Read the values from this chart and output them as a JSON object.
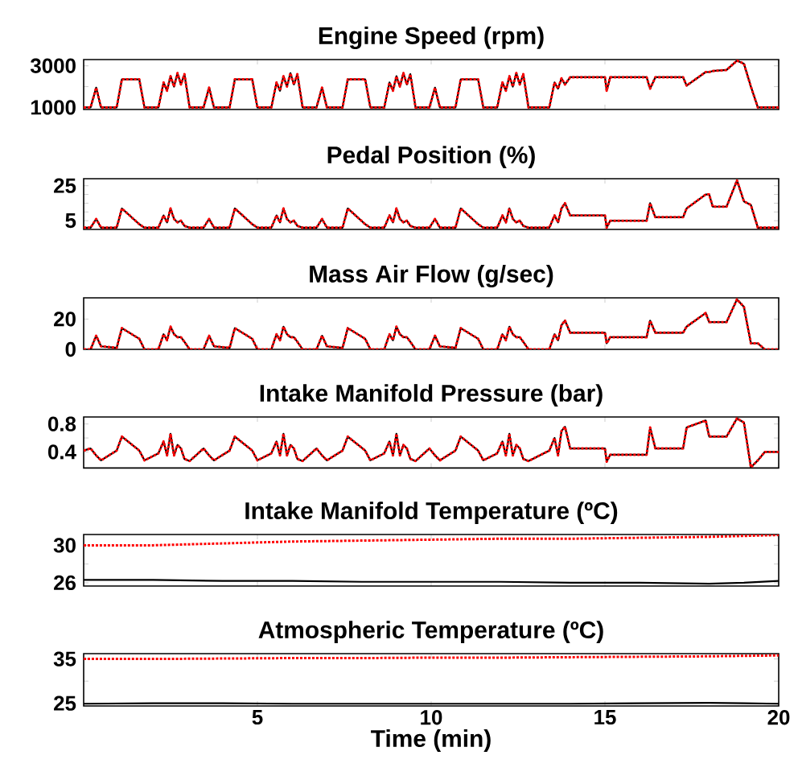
{
  "chart_data": [
    {
      "type": "line",
      "title": "Engine Speed (rpm)",
      "xlim": [
        0,
        20
      ],
      "xticks": [
        5,
        10,
        15,
        20
      ],
      "ylim": [
        900,
        3300
      ],
      "yticks": [
        1000,
        {
          "value": 2000,
          "label": null
        },
        3000
      ],
      "tick_labels": "y",
      "x": [
        0,
        0.2,
        0.36,
        0.5,
        0.95,
        1.1,
        1.6,
        1.75,
        2.15,
        2.3,
        2.4,
        2.5,
        2.6,
        2.7,
        2.8,
        2.9,
        3.05,
        3.45,
        3.61,
        3.75,
        4.2,
        4.35,
        4.85,
        5.0,
        5.4,
        5.55,
        5.65,
        5.75,
        5.85,
        5.95,
        6.05,
        6.15,
        6.3,
        6.7,
        6.86,
        7.0,
        7.45,
        7.6,
        8.1,
        8.25,
        8.65,
        8.8,
        8.9,
        9.0,
        9.1,
        9.2,
        9.3,
        9.4,
        9.55,
        9.95,
        10.11,
        10.25,
        10.7,
        10.85,
        11.35,
        11.5,
        11.9,
        12.05,
        12.15,
        12.25,
        12.35,
        12.45,
        12.55,
        12.65,
        12.8,
        13.4,
        13.55,
        13.65,
        13.75,
        13.85,
        14.0,
        15.0,
        15.05,
        15.15,
        16.2,
        16.3,
        16.45,
        17.25,
        17.35,
        17.9,
        18.0,
        18.1,
        18.5,
        18.8,
        19.0,
        19.2,
        19.4,
        19.6,
        20
      ],
      "series": [
        {
          "color": "#000000",
          "line_style": "solid",
          "values": [
            1000,
            1000,
            1950,
            1000,
            1000,
            2350,
            2350,
            1000,
            1000,
            2200,
            1800,
            2500,
            2000,
            2650,
            2100,
            2600,
            1000,
            1000,
            1950,
            1000,
            1000,
            2350,
            2350,
            1000,
            1000,
            2200,
            1800,
            2500,
            2000,
            2650,
            2100,
            2600,
            1000,
            1000,
            1950,
            1000,
            1000,
            2350,
            2350,
            1000,
            1000,
            2200,
            1800,
            2500,
            2000,
            2650,
            2100,
            2600,
            1000,
            1000,
            1950,
            1000,
            1000,
            2350,
            2350,
            1000,
            1000,
            2200,
            1800,
            2500,
            2000,
            2650,
            2100,
            2600,
            1000,
            1000,
            2200,
            1900,
            2400,
            2100,
            2450,
            2450,
            1800,
            2450,
            2450,
            1900,
            2450,
            2450,
            2050,
            2700,
            2700,
            2750,
            2800,
            3250,
            3100,
            2000,
            1000,
            1000,
            1000
          ]
        },
        {
          "color": "#ff0000",
          "line_style": "dotted",
          "values": [
            1000,
            1000,
            1950,
            1000,
            1000,
            2350,
            2350,
            1000,
            1000,
            2200,
            1800,
            2500,
            2000,
            2650,
            2100,
            2600,
            1000,
            1000,
            1950,
            1000,
            1000,
            2350,
            2350,
            1000,
            1000,
            2200,
            1800,
            2500,
            2000,
            2650,
            2100,
            2600,
            1000,
            1000,
            1950,
            1000,
            1000,
            2350,
            2350,
            1000,
            1000,
            2200,
            1800,
            2500,
            2000,
            2650,
            2100,
            2600,
            1000,
            1000,
            1950,
            1000,
            1000,
            2350,
            2350,
            1000,
            1000,
            2200,
            1800,
            2500,
            2000,
            2650,
            2100,
            2600,
            1000,
            1000,
            2200,
            1900,
            2400,
            2100,
            2450,
            2450,
            1800,
            2450,
            2450,
            1900,
            2450,
            2450,
            2050,
            2700,
            2700,
            2750,
            2800,
            3250,
            3100,
            2000,
            1000,
            1000,
            1000
          ]
        }
      ]
    },
    {
      "type": "line",
      "title": "Pedal Position (%)",
      "xlim": [
        0,
        20
      ],
      "xticks": [
        5,
        10,
        15,
        20
      ],
      "ylim": [
        0,
        29
      ],
      "yticks": [
        5,
        {
          "value": 10,
          "label": null
        },
        {
          "value": 15,
          "label": null
        },
        {
          "value": 20,
          "label": null
        },
        25
      ],
      "tick_labels": "y",
      "x": [
        0,
        0.2,
        0.36,
        0.5,
        0.95,
        1.1,
        1.6,
        1.75,
        2.15,
        2.3,
        2.4,
        2.5,
        2.6,
        2.7,
        2.8,
        2.9,
        3.05,
        3.45,
        3.61,
        3.75,
        4.2,
        4.35,
        4.85,
        5.0,
        5.4,
        5.55,
        5.65,
        5.75,
        5.85,
        5.95,
        6.05,
        6.15,
        6.3,
        6.7,
        6.86,
        7.0,
        7.45,
        7.6,
        8.1,
        8.25,
        8.65,
        8.8,
        8.9,
        9.0,
        9.1,
        9.2,
        9.3,
        9.4,
        9.55,
        9.95,
        10.11,
        10.25,
        10.7,
        10.85,
        11.35,
        11.5,
        11.9,
        12.05,
        12.15,
        12.25,
        12.35,
        12.45,
        12.55,
        12.65,
        12.8,
        13.4,
        13.55,
        13.65,
        13.75,
        13.85,
        14.0,
        15.0,
        15.05,
        15.15,
        16.2,
        16.3,
        16.45,
        17.25,
        17.35,
        17.9,
        18.0,
        18.1,
        18.5,
        18.8,
        19.0,
        19.2,
        19.4,
        19.6,
        20
      ],
      "series": [
        {
          "color": "#000000",
          "line_style": "solid",
          "values": [
            1,
            1,
            6,
            1,
            1,
            12,
            3,
            1,
            1,
            8,
            4,
            12,
            6,
            4,
            5,
            2,
            1,
            1,
            6,
            1,
            1,
            12,
            3,
            1,
            1,
            8,
            4,
            12,
            6,
            4,
            5,
            2,
            1,
            1,
            6,
            1,
            1,
            12,
            3,
            1,
            1,
            8,
            4,
            12,
            6,
            4,
            5,
            2,
            1,
            1,
            6,
            1,
            1,
            12,
            3,
            1,
            1,
            8,
            4,
            12,
            6,
            4,
            5,
            2,
            1,
            1,
            8,
            4,
            12,
            15,
            8,
            8,
            1,
            5,
            5,
            15,
            7,
            7,
            12,
            20,
            20,
            13,
            13,
            28,
            16,
            14,
            1,
            1,
            1
          ]
        },
        {
          "color": "#ff0000",
          "line_style": "dotted",
          "values": [
            1,
            1,
            6,
            1,
            1,
            12,
            3,
            1,
            1,
            8,
            4,
            12,
            6,
            4,
            5,
            2,
            1,
            1,
            6,
            1,
            1,
            12,
            3,
            1,
            1,
            8,
            4,
            12,
            6,
            4,
            5,
            2,
            1,
            1,
            6,
            1,
            1,
            12,
            3,
            1,
            1,
            8,
            4,
            12,
            6,
            4,
            5,
            2,
            1,
            1,
            6,
            1,
            1,
            12,
            3,
            1,
            1,
            8,
            4,
            12,
            6,
            4,
            5,
            2,
            1,
            1,
            8,
            4,
            12,
            15,
            8,
            8,
            1,
            5,
            5,
            15,
            7,
            7,
            12,
            20,
            20,
            13,
            13,
            28,
            16,
            14,
            1,
            1,
            1
          ]
        }
      ]
    },
    {
      "type": "line",
      "title": "Mass Air Flow (g/sec)",
      "xlim": [
        0,
        20
      ],
      "xticks": [
        5,
        10,
        15,
        20
      ],
      "ylim": [
        0,
        34
      ],
      "yticks": [
        0,
        20
      ],
      "tick_labels": "y",
      "x": [
        0,
        0.2,
        0.36,
        0.5,
        0.95,
        1.1,
        1.6,
        1.75,
        2.15,
        2.3,
        2.4,
        2.5,
        2.6,
        2.7,
        2.8,
        2.9,
        3.05,
        3.45,
        3.61,
        3.75,
        4.2,
        4.35,
        4.85,
        5.0,
        5.4,
        5.55,
        5.65,
        5.75,
        5.85,
        5.95,
        6.05,
        6.15,
        6.3,
        6.7,
        6.86,
        7.0,
        7.45,
        7.6,
        8.1,
        8.25,
        8.65,
        8.8,
        8.9,
        9.0,
        9.1,
        9.2,
        9.3,
        9.4,
        9.55,
        9.95,
        10.11,
        10.25,
        10.7,
        10.85,
        11.35,
        11.5,
        11.9,
        12.05,
        12.15,
        12.25,
        12.35,
        12.45,
        12.55,
        12.65,
        12.8,
        13.4,
        13.55,
        13.65,
        13.75,
        13.85,
        14.0,
        15.0,
        15.05,
        15.15,
        16.2,
        16.3,
        16.45,
        17.25,
        17.35,
        17.9,
        18.0,
        18.1,
        18.5,
        18.8,
        19.0,
        19.2,
        19.4,
        19.6,
        20
      ],
      "series": [
        {
          "color": "#000000",
          "line_style": "solid",
          "values": [
            0,
            0,
            9,
            2,
            1,
            14,
            7,
            0,
            0,
            10,
            6,
            15,
            10,
            8,
            8,
            5,
            0,
            0,
            9,
            2,
            1,
            14,
            7,
            0,
            0,
            10,
            6,
            15,
            10,
            8,
            8,
            5,
            0,
            0,
            9,
            2,
            1,
            14,
            7,
            0,
            0,
            10,
            6,
            15,
            10,
            8,
            8,
            5,
            0,
            0,
            9,
            2,
            1,
            14,
            7,
            0,
            0,
            10,
            6,
            15,
            10,
            8,
            8,
            5,
            0,
            0,
            10,
            6,
            16,
            19,
            11,
            11,
            4,
            8,
            8,
            19,
            11,
            11,
            15,
            24,
            18,
            18,
            18,
            33,
            28,
            4,
            4,
            0,
            0
          ]
        },
        {
          "color": "#ff0000",
          "line_style": "dotted",
          "values": [
            0,
            0,
            9,
            2,
            1,
            14,
            7,
            0,
            0,
            10,
            6,
            15,
            10,
            8,
            8,
            5,
            0,
            0,
            9,
            2,
            1,
            14,
            7,
            0,
            0,
            10,
            6,
            15,
            10,
            8,
            8,
            5,
            0,
            0,
            9,
            2,
            1,
            14,
            7,
            0,
            0,
            10,
            6,
            15,
            10,
            8,
            8,
            5,
            0,
            0,
            9,
            2,
            1,
            14,
            7,
            0,
            0,
            10,
            6,
            15,
            10,
            8,
            8,
            5,
            0,
            0,
            10,
            6,
            16,
            19,
            11,
            11,
            4,
            8,
            8,
            19,
            11,
            11,
            15,
            24,
            18,
            18,
            18,
            33,
            28,
            4,
            4,
            0,
            0
          ]
        }
      ]
    },
    {
      "type": "line",
      "title": "Intake Manifold Pressure (bar)",
      "xlim": [
        0,
        20
      ],
      "xticks": [
        5,
        10,
        15,
        20
      ],
      "ylim": [
        0.17,
        0.9
      ],
      "yticks": [
        0.4,
        {
          "value": 0.6,
          "label": null
        },
        0.8
      ],
      "tick_labels": "y",
      "x": [
        0,
        0.2,
        0.36,
        0.5,
        0.95,
        1.1,
        1.6,
        1.75,
        2.15,
        2.3,
        2.4,
        2.5,
        2.6,
        2.7,
        2.8,
        2.9,
        3.05,
        3.45,
        3.61,
        3.75,
        4.2,
        4.35,
        4.85,
        5.0,
        5.4,
        5.55,
        5.65,
        5.75,
        5.85,
        5.95,
        6.05,
        6.15,
        6.3,
        6.7,
        6.86,
        7.0,
        7.45,
        7.6,
        8.1,
        8.25,
        8.65,
        8.8,
        8.9,
        9.0,
        9.1,
        9.2,
        9.3,
        9.4,
        9.55,
        9.95,
        10.11,
        10.25,
        10.7,
        10.85,
        11.35,
        11.5,
        11.9,
        12.05,
        12.15,
        12.25,
        12.35,
        12.45,
        12.55,
        12.65,
        12.8,
        13.4,
        13.55,
        13.65,
        13.75,
        13.85,
        14.0,
        15.0,
        15.05,
        15.15,
        16.2,
        16.3,
        16.45,
        17.25,
        17.35,
        17.9,
        18.0,
        18.1,
        18.5,
        18.8,
        19.0,
        19.2,
        19.4,
        19.6,
        20
      ],
      "series": [
        {
          "color": "#000000",
          "line_style": "solid",
          "values": [
            0.42,
            0.45,
            0.35,
            0.28,
            0.42,
            0.62,
            0.42,
            0.28,
            0.38,
            0.55,
            0.35,
            0.66,
            0.35,
            0.5,
            0.45,
            0.3,
            0.27,
            0.45,
            0.35,
            0.28,
            0.42,
            0.62,
            0.42,
            0.28,
            0.38,
            0.55,
            0.35,
            0.66,
            0.35,
            0.5,
            0.45,
            0.3,
            0.27,
            0.45,
            0.35,
            0.28,
            0.42,
            0.62,
            0.42,
            0.28,
            0.38,
            0.55,
            0.35,
            0.66,
            0.35,
            0.5,
            0.45,
            0.3,
            0.27,
            0.45,
            0.35,
            0.28,
            0.42,
            0.62,
            0.42,
            0.28,
            0.38,
            0.55,
            0.35,
            0.66,
            0.35,
            0.5,
            0.45,
            0.3,
            0.27,
            0.42,
            0.6,
            0.35,
            0.7,
            0.76,
            0.45,
            0.45,
            0.26,
            0.36,
            0.36,
            0.75,
            0.45,
            0.45,
            0.75,
            0.85,
            0.62,
            0.62,
            0.62,
            0.88,
            0.82,
            0.18,
            0.28,
            0.4,
            0.4
          ]
        },
        {
          "color": "#ff0000",
          "line_style": "dotted",
          "values": [
            0.42,
            0.45,
            0.35,
            0.28,
            0.42,
            0.62,
            0.42,
            0.28,
            0.38,
            0.55,
            0.35,
            0.66,
            0.35,
            0.5,
            0.45,
            0.3,
            0.27,
            0.45,
            0.35,
            0.28,
            0.42,
            0.62,
            0.42,
            0.28,
            0.38,
            0.55,
            0.35,
            0.66,
            0.35,
            0.5,
            0.45,
            0.3,
            0.27,
            0.45,
            0.35,
            0.28,
            0.42,
            0.62,
            0.42,
            0.28,
            0.38,
            0.55,
            0.35,
            0.66,
            0.35,
            0.5,
            0.45,
            0.3,
            0.27,
            0.45,
            0.35,
            0.28,
            0.42,
            0.62,
            0.42,
            0.28,
            0.38,
            0.55,
            0.35,
            0.66,
            0.35,
            0.5,
            0.45,
            0.3,
            0.27,
            0.42,
            0.6,
            0.35,
            0.7,
            0.76,
            0.45,
            0.45,
            0.26,
            0.36,
            0.36,
            0.75,
            0.45,
            0.45,
            0.75,
            0.85,
            0.62,
            0.62,
            0.62,
            0.88,
            0.82,
            0.18,
            0.28,
            0.4,
            0.4
          ]
        }
      ]
    },
    {
      "type": "line",
      "title": "Intake Manifold Temperature (ºC)",
      "xlim": [
        0,
        20
      ],
      "xticks": [
        5,
        10,
        15,
        20
      ],
      "ylim": [
        25.65,
        31.15
      ],
      "yticks": [
        26,
        {
          "value": 28,
          "label": null
        },
        30
      ],
      "tick_labels": "y",
      "x": [
        0,
        2,
        4,
        6,
        8,
        10,
        12,
        14,
        16,
        18,
        19,
        20
      ],
      "series": [
        {
          "color": "#000000",
          "line_style": "solid",
          "values": [
            26.3,
            26.3,
            26.2,
            26.2,
            26.1,
            26.1,
            26.1,
            26.0,
            26.0,
            25.9,
            26.0,
            26.2
          ]
        },
        {
          "color": "#ff0000",
          "line_style": "dotted",
          "values": [
            30.0,
            30.0,
            30.2,
            30.4,
            30.5,
            30.6,
            30.7,
            30.7,
            30.8,
            30.9,
            31.0,
            31.1
          ]
        }
      ]
    },
    {
      "type": "line",
      "title": "Atmospheric Temperature (ºC)",
      "xlabel": "Time (min)",
      "xlim": [
        0,
        20
      ],
      "xticks": [
        5,
        10,
        15,
        20
      ],
      "ylim": [
        24.4,
        36.2
      ],
      "yticks": [
        25,
        {
          "value": 30,
          "label": null
        },
        35
      ],
      "x": [
        0,
        2,
        4,
        6,
        8,
        10,
        12,
        14,
        16,
        18,
        19,
        20
      ],
      "series": [
        {
          "color": "#000000",
          "line_style": "solid",
          "values": [
            24.9,
            25.0,
            25.0,
            24.9,
            24.9,
            24.9,
            24.9,
            24.9,
            25.0,
            25.1,
            25.0,
            24.9
          ]
        },
        {
          "color": "#ff0000",
          "line_style": "dotted",
          "values": [
            35.0,
            35.0,
            35.1,
            35.2,
            35.2,
            35.3,
            35.3,
            35.4,
            35.5,
            35.6,
            35.7,
            35.8
          ]
        }
      ]
    }
  ]
}
